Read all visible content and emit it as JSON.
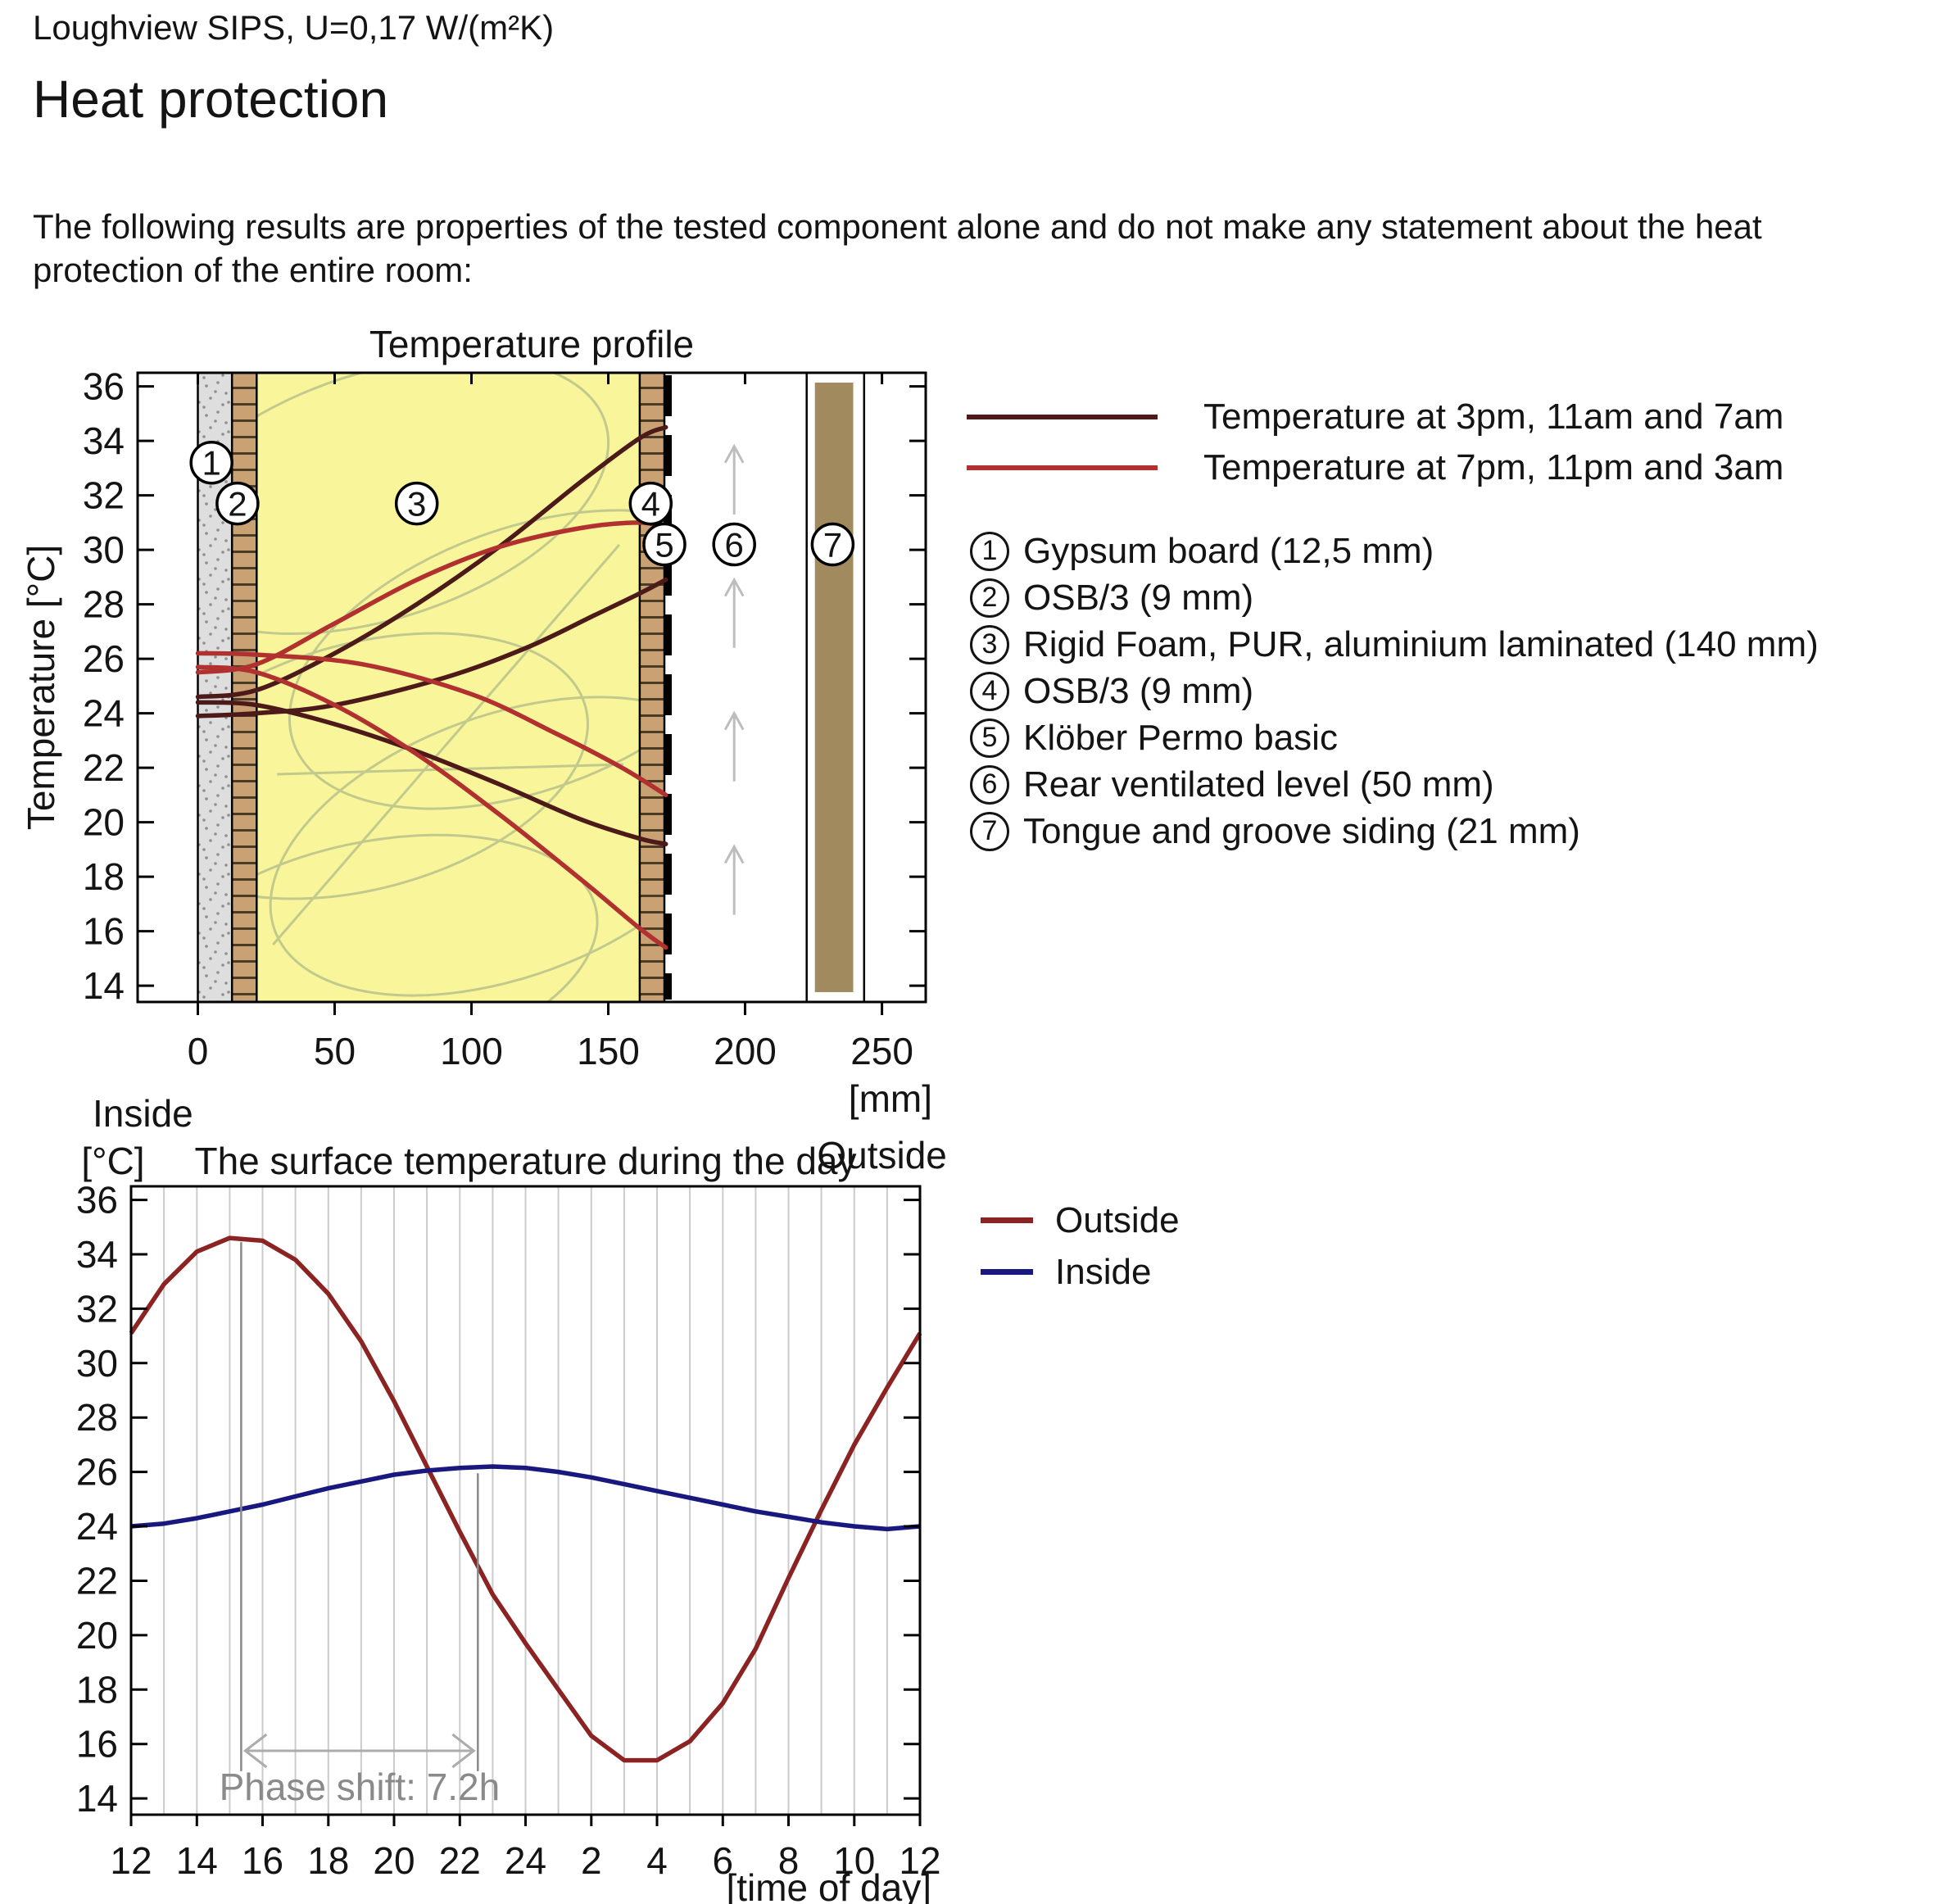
{
  "doc": {
    "header": "Loughview SIPS, U=0,17 W/(m²K)",
    "title": "Heat protection",
    "intro": "The following results are properties of the tested component alone and do not make any statement about the heat protection of the entire room:"
  },
  "chart_data": [
    {
      "type": "line",
      "id": "profile",
      "title": "Temperature profile",
      "ylabel": "Temperature [°C]",
      "xlabel": "[mm]",
      "inside_label": "Inside",
      "outside_label": "Outside",
      "xlim": [
        -22,
        266
      ],
      "ylim": [
        13.4,
        36.5
      ],
      "x_ticks": [
        0,
        50,
        100,
        150,
        200,
        250
      ],
      "y_ticks": [
        14,
        16,
        18,
        20,
        22,
        24,
        26,
        28,
        30,
        32,
        34,
        36
      ],
      "legend": [
        {
          "label": "Temperature at 3pm, 11am and 7am",
          "color": "#4d1a1a"
        },
        {
          "label": "Temperature at 7pm, 11pm and 3am",
          "color": "#b13030"
        }
      ],
      "layers": [
        {
          "n": "1",
          "label": "Gypsum board (12,5 mm)",
          "from": 0,
          "to": 12.5,
          "kind": "gypsum",
          "fill": "#dedede"
        },
        {
          "n": "2",
          "label": "OSB/3 (9 mm)",
          "from": 12.5,
          "to": 21.5,
          "kind": "osb",
          "fill": "#c9a173"
        },
        {
          "n": "3",
          "label": "Rigid Foam, PUR, aluminium laminated (140 mm)",
          "from": 21.5,
          "to": 161.5,
          "kind": "foam",
          "fill": "#f8f59b"
        },
        {
          "n": "4",
          "label": "OSB/3 (9 mm)",
          "from": 161.5,
          "to": 170.5,
          "kind": "osb",
          "fill": "#c9a173"
        },
        {
          "n": "5",
          "label": "Klöber Permo basic",
          "from": 171.5,
          "to": 172.5,
          "kind": "membrane",
          "fill": "#000000"
        },
        {
          "n": "6",
          "label": "Rear ventilated level (50 mm)",
          "from": 172.5,
          "to": 222.5,
          "kind": "air",
          "fill": "#ffffff"
        },
        {
          "n": "7",
          "label": "Tongue and groove siding (21 mm)",
          "from": 222.5,
          "to": 243.5,
          "kind": "siding",
          "fill": "#a18a5e"
        }
      ],
      "boundaries": [
        0,
        12.5,
        21.5,
        161.5,
        170.5,
        222.5,
        243.5
      ],
      "number_markers": [
        {
          "n": "1",
          "x": 5,
          "y": 33.2
        },
        {
          "n": "2",
          "x": 14.5,
          "y": 31.7
        },
        {
          "n": "3",
          "x": 80,
          "y": 31.7
        },
        {
          "n": "4",
          "x": 165.5,
          "y": 31.7
        },
        {
          "n": "5",
          "x": 170.5,
          "y": 30.2
        },
        {
          "n": "6",
          "x": 196,
          "y": 30.2
        },
        {
          "n": "7",
          "x": 232,
          "y": 30.2
        }
      ],
      "air_arrows": {
        "x": 196,
        "bottoms": [
          16.6,
          21.5,
          26.4,
          31.3
        ],
        "length": 2.5,
        "color": "#bdbdbd"
      },
      "foam_pattern_color": "#c2c98c",
      "series": [
        {
          "name": "Temperature at 3pm, 11am and 7am",
          "color": "#4d1a1a",
          "curves": [
            [
              [
                0,
                24.6
              ],
              [
                21.5,
                24.85
              ],
              [
                50,
                26.2
              ],
              [
                80,
                28.0
              ],
              [
                110,
                30.1
              ],
              [
                140,
                32.5
              ],
              [
                161.5,
                34.1
              ],
              [
                171,
                34.5
              ]
            ],
            [
              [
                0,
                23.9
              ],
              [
                21.5,
                24.0
              ],
              [
                50,
                24.3
              ],
              [
                90,
                25.3
              ],
              [
                120,
                26.4
              ],
              [
                145,
                27.6
              ],
              [
                161.5,
                28.4
              ],
              [
                171,
                28.9
              ]
            ],
            [
              [
                0,
                24.4
              ],
              [
                21.5,
                24.3
              ],
              [
                50,
                23.6
              ],
              [
                80,
                22.6
              ],
              [
                110,
                21.4
              ],
              [
                140,
                20.1
              ],
              [
                161.5,
                19.4
              ],
              [
                171,
                19.2
              ]
            ]
          ]
        },
        {
          "name": "Temperature at 7pm, 11pm and 3am",
          "color": "#b13030",
          "curves": [
            [
              [
                0,
                25.5
              ],
              [
                21.5,
                25.8
              ],
              [
                50,
                27.3
              ],
              [
                80,
                28.9
              ],
              [
                110,
                30.1
              ],
              [
                140,
                30.8
              ],
              [
                161.5,
                31.0
              ],
              [
                171,
                30.8
              ]
            ],
            [
              [
                0,
                26.2
              ],
              [
                21.5,
                26.15
              ],
              [
                60,
                25.8
              ],
              [
                100,
                24.7
              ],
              [
                130,
                23.3
              ],
              [
                155,
                22.0
              ],
              [
                171,
                21.0
              ]
            ],
            [
              [
                0,
                25.7
              ],
              [
                21.5,
                25.5
              ],
              [
                50,
                24.3
              ],
              [
                80,
                22.5
              ],
              [
                110,
                20.3
              ],
              [
                140,
                17.9
              ],
              [
                161.5,
                16.1
              ],
              [
                171,
                15.4
              ]
            ]
          ]
        }
      ]
    },
    {
      "type": "line",
      "id": "day",
      "title": "The surface temperature during the day",
      "ylabel": "[°C]",
      "xlabel": "[time of day]",
      "xlim": [
        12,
        36
      ],
      "ylim": [
        13.4,
        36.5
      ],
      "x_tick_labels": [
        "12",
        "14",
        "16",
        "18",
        "20",
        "22",
        "24",
        "2",
        "4",
        "6",
        "8",
        "10",
        "12"
      ],
      "x_tick_step": 2,
      "grid_every_hour": true,
      "grid_color": "#cbcbcb",
      "y_ticks": [
        14,
        16,
        18,
        20,
        22,
        24,
        26,
        28,
        30,
        32,
        34,
        36
      ],
      "legend": [
        {
          "label": "Outside",
          "color": "#8b2323"
        },
        {
          "label": "Inside",
          "color": "#18187e"
        }
      ],
      "series": [
        {
          "name": "Outside",
          "color": "#8b2323",
          "start_hour": 12,
          "values": [
            31.1,
            32.9,
            34.1,
            34.6,
            34.5,
            33.8,
            32.55,
            30.8,
            28.6,
            26.2,
            23.8,
            21.5,
            19.7,
            18.0,
            16.3,
            15.4,
            15.4,
            16.1,
            17.5,
            19.5,
            22.1,
            24.6,
            27.0,
            29.1,
            31.1
          ]
        },
        {
          "name": "Inside",
          "color": "#18187e",
          "start_hour": 12,
          "values": [
            24.0,
            24.1,
            24.3,
            24.55,
            24.8,
            25.1,
            25.4,
            25.65,
            25.9,
            26.05,
            26.15,
            26.2,
            26.15,
            26.0,
            25.8,
            25.55,
            25.3,
            25.05,
            24.8,
            24.55,
            24.35,
            24.15,
            24.0,
            23.9,
            24.0
          ]
        }
      ],
      "phase_shift": {
        "label": "Phase shift: 7.2h",
        "x1": 15.35,
        "x2": 22.55,
        "top1": 34.45,
        "top2": 25.95,
        "line_bottom": 15.0,
        "arrow_y": 15.75,
        "text_color": "#8a8a8a",
        "line_color": "#8a8a8a",
        "arrow_color": "#acacac"
      }
    }
  ]
}
